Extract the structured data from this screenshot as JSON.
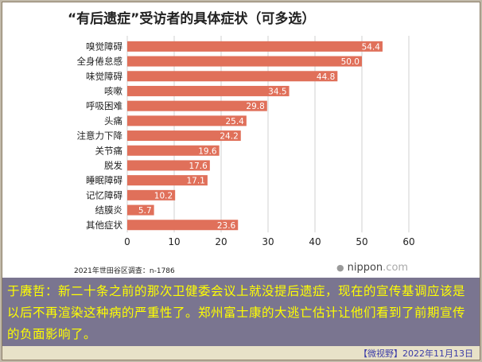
{
  "chart_data": {
    "type": "bar",
    "orientation": "horizontal",
    "title": "“有后遗症”受访者的具体症状（可多选）",
    "categories": [
      "嗅觉障碍",
      "全身倦怠感",
      "味觉障碍",
      "咳嗽",
      "呼吸困难",
      "头痛",
      "注意力下降",
      "关节痛",
      "脱发",
      "睡眠障碍",
      "记忆障碍",
      "结膜炎",
      "其他症状"
    ],
    "values": [
      54.4,
      50.0,
      44.8,
      34.5,
      29.8,
      25.4,
      24.2,
      19.6,
      17.6,
      17.1,
      10.2,
      5.7,
      23.6
    ],
    "value_labels": [
      "54.4",
      "50.0",
      "44.8",
      "34.5",
      "29.8",
      "25.4",
      "24.2",
      "19.6",
      "17.6",
      "17.1",
      "10.2",
      "5.7",
      "23.6"
    ],
    "xlim": [
      0,
      60
    ],
    "xticks": [
      "0",
      "10",
      "20",
      "30",
      "40",
      "50",
      "60"
    ],
    "grid": true,
    "bar_color": "#e0705a",
    "note": "2021年世田谷区调查：n-1786"
  },
  "brand": {
    "mark": "●",
    "name": "nippon",
    "suffix": ".com"
  },
  "comment": "于赓哲：新二十条之前的那次卫健委会议上就没提后遗症，现在的宣传基调应该是以后不再渲染这种病的严重性了。郑州富士康的大逃亡估计让他们看到了前期宣传的负面影响了。",
  "source": "【微视野】2022年11月13日",
  "colors": {
    "comment_bg": "#7a7590",
    "comment_text": "#ffff00",
    "footer_bg": "#e8e2c8",
    "source_text": "#3a3aa8"
  }
}
